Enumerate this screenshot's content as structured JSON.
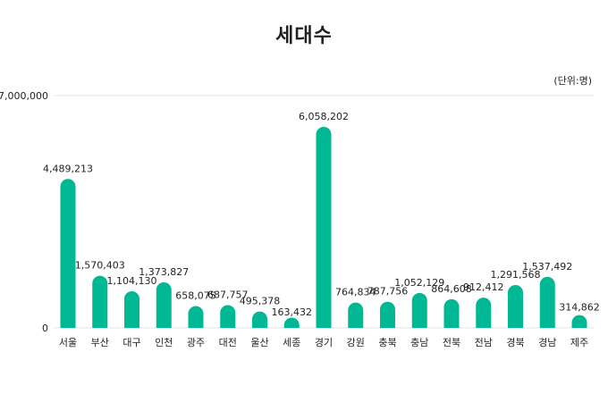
{
  "chart_data": {
    "type": "bar",
    "title": "세대수",
    "unit": "(단위:명)",
    "ylim": [
      0,
      7000000
    ],
    "y_ticks": [
      "0",
      "7,000,000"
    ],
    "grid": true,
    "bar_color": "#00b894",
    "categories": [
      "서울",
      "부산",
      "대구",
      "인천",
      "광주",
      "대전",
      "울산",
      "세종",
      "경기",
      "강원",
      "충북",
      "충남",
      "전북",
      "전남",
      "경북",
      "경남",
      "제주"
    ],
    "values": [
      4489213,
      1570403,
      1104130,
      1373827,
      658075,
      687757,
      495378,
      163432,
      6058202,
      764834,
      787756,
      1052129,
      864608,
      912412,
      1291568,
      1537492,
      314862
    ],
    "value_labels": [
      "4,489,213",
      "1,570,403",
      "1,104,130",
      "1,373,827",
      "658,075",
      "687,757",
      "495,378",
      "163,432",
      "6,058,202",
      "764,834",
      "787,756",
      "1,052,129",
      "864,608",
      "912,412",
      "1,291,568",
      "1,537,492",
      "314,862"
    ]
  }
}
